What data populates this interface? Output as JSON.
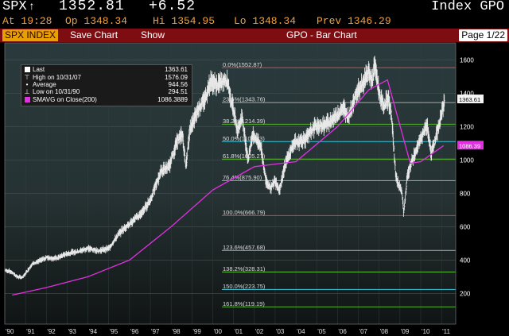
{
  "header": {
    "ticker": "SPX",
    "ticker_arrow": "↑",
    "price": "1352.81",
    "change": "+6.52",
    "index_label": "Index GPO",
    "time": "At 19:28",
    "open": "Op 1348.34",
    "high": "Hi 1354.95",
    "low": "Lo 1348.34",
    "prev": "Prev 1346.29"
  },
  "toolbar": {
    "tab_label": "SPX INDEX",
    "save_label": "Save Chart",
    "show_label": "Show",
    "title": "GPO - Bar Chart",
    "page_label": "Page 1/22"
  },
  "legend": {
    "items": [
      {
        "label": "Last",
        "value": "1363.61",
        "icon": "square-icon",
        "color": "#ffffff"
      },
      {
        "label": "High on 10/31/07",
        "value": "1576.09",
        "icon": "high-marker-icon",
        "color": "#ffffff"
      },
      {
        "label": "Average",
        "value": "944.56",
        "icon": "average-marker-icon",
        "color": "#ffffff"
      },
      {
        "label": "Low on 10/31/90",
        "value": "294.51",
        "icon": "low-marker-icon",
        "color": "#ffffff"
      },
      {
        "label": "SMAVG on Close(200)",
        "value": "1086.3889",
        "icon": "square-icon",
        "color": "#e030e0"
      }
    ]
  },
  "chart_data": {
    "type": "bar",
    "title": "GPO - Bar Chart",
    "x_ticks": [
      "'90",
      "'91",
      "'92",
      "'93",
      "'94",
      "'95",
      "'96",
      "'97",
      "'98",
      "'99",
      "'00",
      "'01",
      "'02",
      "'03",
      "'04",
      "'05",
      "'06",
      "'07",
      "'08",
      "'09",
      "'10",
      "'11"
    ],
    "x_range": [
      1990.0,
      2011.3
    ],
    "y_ticks": [
      200,
      400,
      600,
      800,
      1000,
      1200,
      1400,
      1600
    ],
    "ylim": [
      100,
      1650
    ],
    "grid": true,
    "price_keypoints": [
      [
        1990.0,
        340
      ],
      [
        1990.3,
        330
      ],
      [
        1990.6,
        300
      ],
      [
        1990.85,
        295
      ],
      [
        1991.0,
        320
      ],
      [
        1991.3,
        375
      ],
      [
        1991.6,
        390
      ],
      [
        1992.0,
        415
      ],
      [
        1992.5,
        410
      ],
      [
        1993.0,
        440
      ],
      [
        1993.5,
        450
      ],
      [
        1994.0,
        470
      ],
      [
        1994.5,
        455
      ],
      [
        1995.0,
        470
      ],
      [
        1995.5,
        560
      ],
      [
        1996.0,
        620
      ],
      [
        1996.5,
        670
      ],
      [
        1997.0,
        760
      ],
      [
        1997.5,
        930
      ],
      [
        1997.9,
        960
      ],
      [
        1998.3,
        1120
      ],
      [
        1998.55,
        1150
      ],
      [
        1998.7,
        960
      ],
      [
        1998.9,
        1180
      ],
      [
        1999.3,
        1310
      ],
      [
        1999.6,
        1360
      ],
      [
        1999.9,
        1470
      ],
      [
        2000.2,
        1450
      ],
      [
        2000.7,
        1480
      ],
      [
        2000.9,
        1350
      ],
      [
        2001.2,
        1180
      ],
      [
        2001.4,
        1260
      ],
      [
        2001.7,
        1000
      ],
      [
        2001.9,
        1150
      ],
      [
        2002.3,
        1090
      ],
      [
        2002.55,
        880
      ],
      [
        2002.8,
        830
      ],
      [
        2003.0,
        880
      ],
      [
        2003.2,
        820
      ],
      [
        2003.5,
        980
      ],
      [
        2003.9,
        1100
      ],
      [
        2004.5,
        1130
      ],
      [
        2004.9,
        1200
      ],
      [
        2005.4,
        1210
      ],
      [
        2005.9,
        1260
      ],
      [
        2006.3,
        1310
      ],
      [
        2006.5,
        1250
      ],
      [
        2006.9,
        1400
      ],
      [
        2007.3,
        1480
      ],
      [
        2007.5,
        1540
      ],
      [
        2007.65,
        1460
      ],
      [
        2007.8,
        1576
      ],
      [
        2008.0,
        1400
      ],
      [
        2008.2,
        1320
      ],
      [
        2008.45,
        1370
      ],
      [
        2008.6,
        1260
      ],
      [
        2008.8,
        900
      ],
      [
        2008.95,
        850
      ],
      [
        2009.1,
        800
      ],
      [
        2009.18,
        680
      ],
      [
        2009.35,
        900
      ],
      [
        2009.6,
        1000
      ],
      [
        2009.95,
        1110
      ],
      [
        2010.3,
        1210
      ],
      [
        2010.5,
        1040
      ],
      [
        2010.65,
        1100
      ],
      [
        2010.9,
        1220
      ],
      [
        2011.15,
        1363.61
      ]
    ],
    "series": [
      {
        "name": "SMAVG on Close(200)",
        "color": "#e030e0",
        "keypoints": [
          [
            1990.35,
            190
          ],
          [
            1992,
            235
          ],
          [
            1994,
            300
          ],
          [
            1996,
            400
          ],
          [
            1998,
            600
          ],
          [
            2000,
            820
          ],
          [
            2001,
            890
          ],
          [
            2002,
            960
          ],
          [
            2003,
            975
          ],
          [
            2004,
            990
          ],
          [
            2006,
            1200
          ],
          [
            2007.5,
            1420
          ],
          [
            2008.4,
            1480
          ],
          [
            2009.5,
            980
          ],
          [
            2010,
            990
          ],
          [
            2011.1,
            1086.39
          ]
        ]
      }
    ],
    "last_value_label": "1363.61",
    "smavg_value_label": "1086.39",
    "fib_levels": [
      {
        "label": "0.0%(1552.87)",
        "value": 1552.87,
        "color": "#d24545"
      },
      {
        "label": "23.6%(1343.76)",
        "value": 1343.76,
        "color": "#9a9a9a"
      },
      {
        "label": "38.2%(1214.39)",
        "value": 1214.39,
        "color": "#55b52a"
      },
      {
        "label": "50.0%(1109.83)",
        "value": 1109.83,
        "color": "#2fb7c8"
      },
      {
        "label": "61.8%(1005.27)",
        "value": 1005.27,
        "color": "#55b52a"
      },
      {
        "label": "76.4%(875.90)",
        "value": 875.9,
        "color": "#9a9a9a"
      },
      {
        "label": "100.0%(666.79)",
        "value": 666.79,
        "color": "#d24545"
      },
      {
        "label": "123.6%(457.68)",
        "value": 457.68,
        "color": "#9a9a9a"
      },
      {
        "label": "138.2%(328.31)",
        "value": 328.31,
        "color": "#55b52a"
      },
      {
        "label": "150.0%(223.75)",
        "value": 223.75,
        "color": "#2fb7c8"
      },
      {
        "label": "161.8%(119.19)",
        "value": 119.19,
        "color": "#55b52a"
      }
    ]
  }
}
